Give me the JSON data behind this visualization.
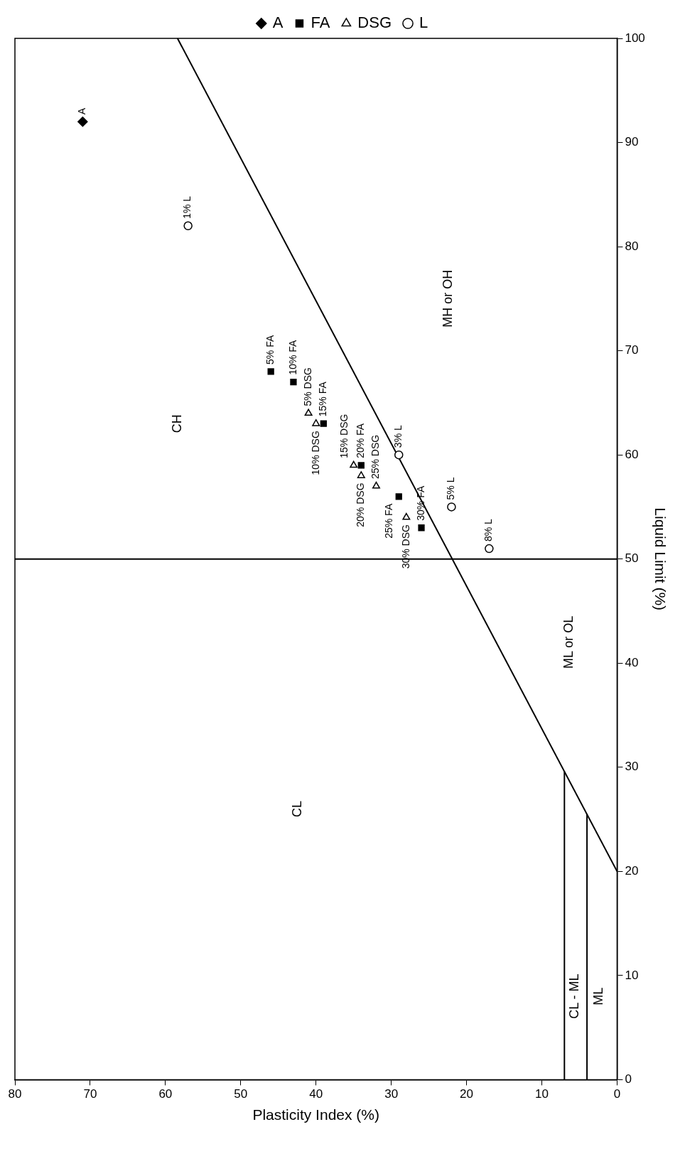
{
  "chart_data": {
    "type": "scatter",
    "xlabel": "Plasticity Index (%)",
    "ylabel": "Liquid Limit (%)",
    "xlim": [
      80,
      0
    ],
    "ylim": [
      0,
      100
    ],
    "xticks": [
      80,
      70,
      60,
      50,
      40,
      30,
      20,
      10,
      0
    ],
    "yticks": [
      0,
      10,
      20,
      30,
      40,
      50,
      60,
      70,
      80,
      90,
      100
    ],
    "legend": "top",
    "series": [
      {
        "name": "A",
        "type": "scatter",
        "marker": "diamond",
        "color": "#000000",
        "x": [
          71
        ],
        "values": [
          92
        ]
      },
      {
        "name": "FA",
        "type": "scatter",
        "marker": "square",
        "color": "#000000",
        "x": [
          46,
          43,
          39,
          34,
          29,
          26
        ],
        "values": [
          68,
          67,
          63,
          59,
          56,
          53
        ]
      },
      {
        "name": "DSG",
        "type": "scatter",
        "marker": "triangle",
        "color": "#000000",
        "x": [
          41,
          40,
          35,
          34,
          32,
          28
        ],
        "values": [
          64,
          63,
          59,
          58,
          57,
          54
        ]
      },
      {
        "name": "L",
        "type": "scatter",
        "marker": "circle",
        "color": "#000000",
        "x": [
          57,
          29,
          22,
          17
        ],
        "values": [
          82,
          60,
          55,
          51
        ]
      },
      {
        "type": "line",
        "marker": "none",
        "color": "#000000",
        "x": [
          0,
          58.4
        ],
        "values": [
          20,
          100
        ]
      },
      {
        "type": "line",
        "marker": "none",
        "color": "#000000",
        "x": [
          7,
          7
        ],
        "values": [
          0,
          29.6
        ]
      },
      {
        "type": "line",
        "marker": "none",
        "color": "#000000",
        "x": [
          4,
          4
        ],
        "values": [
          0,
          25.5
        ]
      }
    ],
    "ref_lines": [
      {
        "axis": "y",
        "value": 50,
        "color": "#000000"
      }
    ],
    "annotations": [
      {
        "text": "A",
        "x": 71,
        "y": 92
      },
      {
        "text": "5% FA",
        "x": 46,
        "y": 68
      },
      {
        "text": "10% FA",
        "x": 43,
        "y": 67
      },
      {
        "text": "15% FA",
        "x": 39,
        "y": 63
      },
      {
        "text": "20% FA",
        "x": 34,
        "y": 59
      },
      {
        "text": "25% FA",
        "x": 29,
        "y": 56
      },
      {
        "text": "30% FA",
        "x": 26,
        "y": 53
      },
      {
        "text": "5% DSG",
        "x": 41,
        "y": 64
      },
      {
        "text": "10% DSG",
        "x": 40,
        "y": 63
      },
      {
        "text": "15% DSG",
        "x": 35,
        "y": 59
      },
      {
        "text": "20% DSG",
        "x": 34,
        "y": 58
      },
      {
        "text": "25% DSG",
        "x": 32,
        "y": 57
      },
      {
        "text": "30% DSG",
        "x": 28,
        "y": 54
      },
      {
        "text": "1% L",
        "x": 57,
        "y": 82
      },
      {
        "text": "3% L",
        "x": 29,
        "y": 60
      },
      {
        "text": "5% L",
        "x": 22,
        "y": 55
      },
      {
        "text": "8% L",
        "x": 17,
        "y": 51
      },
      "CH",
      "CL",
      "MH or OH",
      "ML or OL",
      "CL - ML",
      "ML"
    ]
  }
}
